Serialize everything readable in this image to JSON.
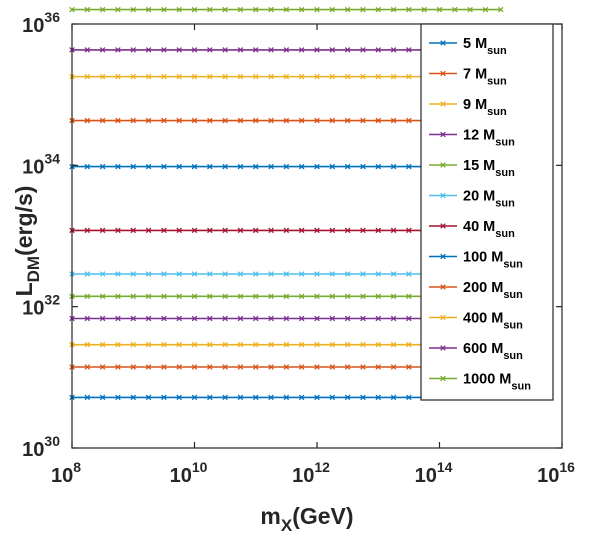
{
  "chart_data": {
    "type": "line",
    "xscale": "log",
    "yscale": "log",
    "xlim": [
      100000000.0,
      1e+16
    ],
    "ylim": [
      1e+30,
      1e+36
    ],
    "grid": false,
    "legend_position": "top-right",
    "xlabel": {
      "main": "m",
      "sub": "X",
      "tail": "(GeV)"
    },
    "ylabel": {
      "main": "L",
      "sub": "DM",
      "tail": "(erg/s)"
    },
    "xticks": [
      {
        "value": 100000000.0,
        "base": "10",
        "exp": "8"
      },
      {
        "value": 10000000000.0,
        "base": "10",
        "exp": "10"
      },
      {
        "value": 1000000000000.0,
        "base": "10",
        "exp": "12"
      },
      {
        "value": 100000000000000.0,
        "base": "10",
        "exp": "14"
      },
      {
        "value": 1e+16,
        "base": "10",
        "exp": "16"
      }
    ],
    "yticks": [
      {
        "value": 1e+30,
        "base": "10",
        "exp": "30"
      },
      {
        "value": 1e+32,
        "base": "10",
        "exp": "32"
      },
      {
        "value": 1e+34,
        "base": "10",
        "exp": "34"
      },
      {
        "value": 1e+36,
        "base": "10",
        "exp": "36"
      }
    ],
    "x": [
      100000000.0,
      1000000000.0,
      10000000000.0,
      100000000000.0,
      1000000000000.0,
      10000000000000.0,
      100000000000000.0,
      1000000000000000.0
    ],
    "series": [
      {
        "name": "5 M",
        "name_sub": "sun",
        "color": "#0072BD",
        "y": 5.2e+30
      },
      {
        "name": "7 M",
        "name_sub": "sun",
        "color": "#D95319",
        "y": 1.4e+31
      },
      {
        "name": "9 M",
        "name_sub": "sun",
        "color": "#EDB120",
        "y": 2.9e+31
      },
      {
        "name": "12 M",
        "name_sub": "sun",
        "color": "#7E2F8E",
        "y": 6.8e+31
      },
      {
        "name": "15 M",
        "name_sub": "sun",
        "color": "#77AC30",
        "y": 1.4e+32
      },
      {
        "name": "20 M",
        "name_sub": "sun",
        "color": "#4DBEEE",
        "y": 2.9e+32
      },
      {
        "name": "40 M",
        "name_sub": "sun",
        "color": "#A2142F",
        "y": 1.2e+33
      },
      {
        "name": "100 M",
        "name_sub": "sun",
        "color": "#0072BD",
        "y": 9.6e+33
      },
      {
        "name": "200 M",
        "name_sub": "sun",
        "color": "#D95319",
        "y": 4.3e+34
      },
      {
        "name": "400 M",
        "name_sub": "sun",
        "color": "#EDB120",
        "y": 1.8e+35
      },
      {
        "name": "600 M",
        "name_sub": "sun",
        "color": "#7E2F8E",
        "y": 4.3e+35
      },
      {
        "name": "1000 M",
        "name_sub": "sun",
        "color": "#77AC30",
        "y": 1.6e+36
      }
    ]
  }
}
